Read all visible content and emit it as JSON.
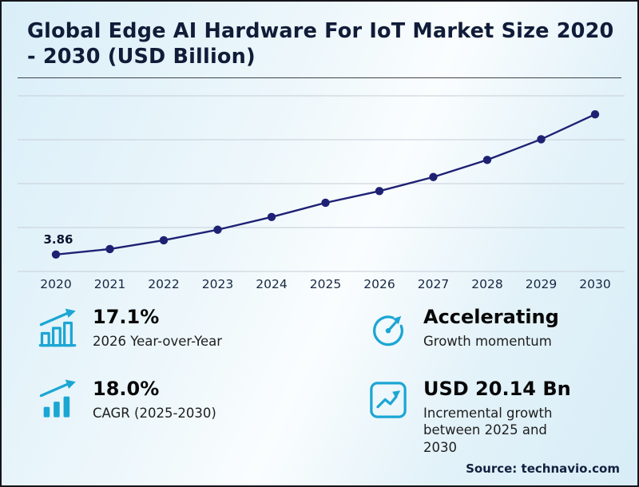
{
  "colors": {
    "accent": "#1ba6d4",
    "line": "#1e2173",
    "grid": "#c6cdd6",
    "title": "#101c38"
  },
  "header": {
    "title": "Global Edge AI Hardware For IoT Market Size 2020 - 2030 (USD Billion)"
  },
  "chart_data": {
    "type": "line",
    "categories": [
      "2020",
      "2021",
      "2022",
      "2023",
      "2024",
      "2025",
      "2026",
      "2027",
      "2028",
      "2029",
      "2030"
    ],
    "series": [
      {
        "name": "Market size (USD Billion)",
        "values": [
          3.86,
          5.1,
          7.1,
          9.5,
          12.4,
          15.64,
          18.31,
          21.5,
          25.4,
          30.1,
          35.78
        ]
      }
    ],
    "point_label": {
      "index": 0,
      "text": "3.86"
    },
    "ylim": [
      0,
      40
    ],
    "gridline_count": 5,
    "grid": true,
    "legend": "none",
    "y_axis_labels": "none",
    "xlabel": "",
    "ylabel": ""
  },
  "stats": {
    "items": [
      {
        "icon": "bar-chart-arrow-icon",
        "value": "17.1%",
        "label": "2026 Year-over-Year"
      },
      {
        "icon": "gauge-icon",
        "value": "Accelerating",
        "label": "Growth momentum"
      },
      {
        "icon": "rising-bars-arrow-icon",
        "value": "18.0%",
        "label": "CAGR (2025-2030)"
      },
      {
        "icon": "chart-box-icon",
        "value": "USD 20.14 Bn",
        "label": "Incremental growth between 2025 and 2030"
      }
    ]
  },
  "footer": {
    "source": "Source: technavio.com"
  }
}
